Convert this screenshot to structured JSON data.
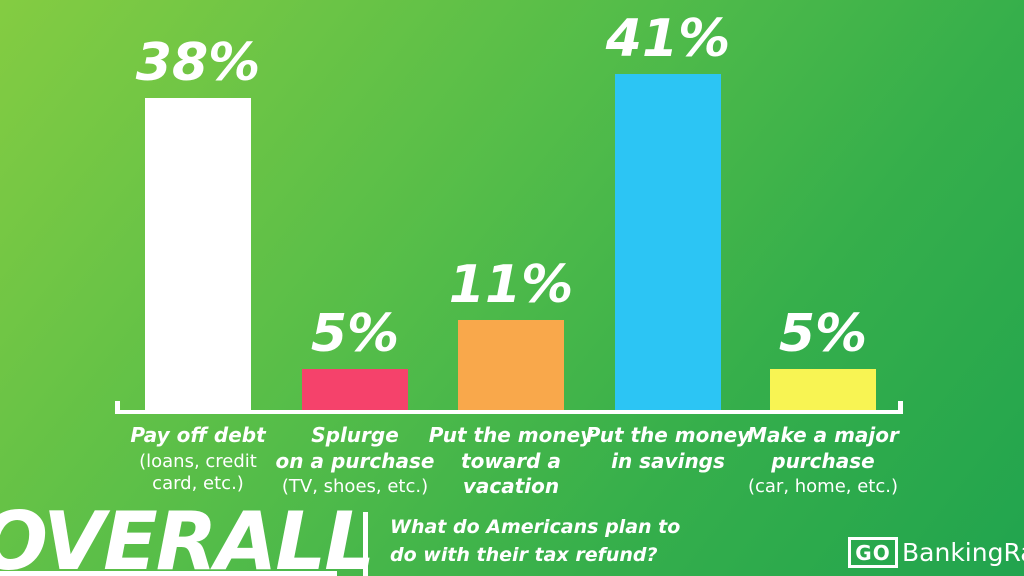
{
  "chart_data": {
    "type": "bar",
    "title": "What do Americans plan to do with their tax refund?",
    "categories": [
      "Pay off debt (loans, credit card, etc.)",
      "Splurge on a purchase (TV, shoes, etc.)",
      "Put the money toward a vacation",
      "Put the money in savings",
      "Make a major purchase (car, home, etc.)"
    ],
    "values": [
      38,
      5,
      11,
      41,
      5
    ],
    "data_labels": [
      "38%",
      "5%",
      "11%",
      "41%",
      "5%"
    ],
    "bar_colors": [
      "#FFFFFF",
      "#F5426B",
      "#F9A84B",
      "#2CC5F4",
      "#F8F453"
    ],
    "ylim": [
      0,
      45
    ],
    "grid": false,
    "legend": false,
    "xlabel": "",
    "ylabel": ""
  },
  "bar_labels": [
    {
      "title": "Pay off debt",
      "sub": "(loans, credit\ncard, etc.)"
    },
    {
      "title": "Splurge\non a purchase",
      "sub": "(TV, shoes, etc.)"
    },
    {
      "title": "Put the money\ntoward a\nvacation",
      "sub": ""
    },
    {
      "title": "Put the money\nin savings",
      "sub": ""
    },
    {
      "title": "Make a major\npurchase",
      "sub": "(car, home, etc.)"
    }
  ],
  "footer": {
    "section_label": "OVERALL",
    "question": "What do Americans plan to\ndo with their tax refund?",
    "logo": {
      "go": "GO",
      "rest": "BankingRates"
    }
  },
  "colors": {
    "background_top_left": "#84CC42",
    "background_bottom_right": "#21A44E",
    "axis": "#FFFFFF",
    "text": "#FFFFFF"
  }
}
